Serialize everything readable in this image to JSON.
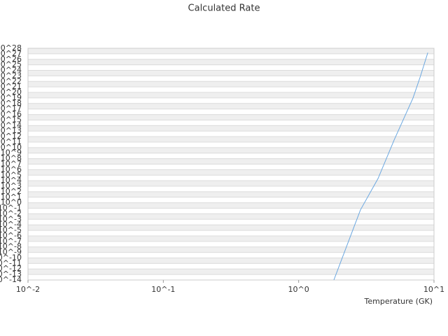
{
  "chart_data": {
    "type": "line",
    "title": "Calculated Rate",
    "x_label": "Temperature (GK)",
    "xscale": "log",
    "yscale": "log",
    "grid": true,
    "xlim": [
      0.01,
      10
    ],
    "xticks": [
      {
        "value": 0.01,
        "label": "10^-2"
      },
      {
        "value": 0.1,
        "label": "10^-1"
      },
      {
        "value": 1,
        "label": "10^0"
      },
      {
        "value": 10,
        "label": "10^1"
      }
    ],
    "ylim": [
      1e-14,
      1e+28
    ],
    "yticks": [
      {
        "value": 1e-14,
        "label": "10^-14"
      },
      {
        "value": 1e-13,
        "label": "10^-13"
      },
      {
        "value": 1e-12,
        "label": "10^-12"
      },
      {
        "value": 1e-11,
        "label": "10^-11"
      },
      {
        "value": 1e-10,
        "label": "10^-10"
      },
      {
        "value": 1e-09,
        "label": "10^-9"
      },
      {
        "value": 1e-08,
        "label": "10^-8"
      },
      {
        "value": 1e-07,
        "label": "10^-7"
      },
      {
        "value": 1e-06,
        "label": "10^-6"
      },
      {
        "value": 1e-05,
        "label": "10^-5"
      },
      {
        "value": 0.0001,
        "label": "10^-4"
      },
      {
        "value": 0.001,
        "label": "10^-3"
      },
      {
        "value": 0.01,
        "label": "10^-2"
      },
      {
        "value": 0.1,
        "label": "10^-1"
      },
      {
        "value": 1,
        "label": "10^0"
      },
      {
        "value": 10.0,
        "label": "10^1"
      },
      {
        "value": 100.0,
        "label": "10^2"
      },
      {
        "value": 1000.0,
        "label": "10^3"
      },
      {
        "value": 10000.0,
        "label": "10^4"
      },
      {
        "value": 100000.0,
        "label": "10^5"
      },
      {
        "value": 1000000.0,
        "label": "10^6"
      },
      {
        "value": 10000000.0,
        "label": "10^7"
      },
      {
        "value": 100000000.0,
        "label": "10^8"
      },
      {
        "value": 1000000000.0,
        "label": "10^9"
      },
      {
        "value": 10000000000.0,
        "label": "10^10"
      },
      {
        "value": 100000000000.0,
        "label": "10^11"
      },
      {
        "value": 1000000000000.0,
        "label": "10^12"
      },
      {
        "value": 10000000000000.0,
        "label": "10^13"
      },
      {
        "value": 100000000000000.0,
        "label": "10^14"
      },
      {
        "value": 1000000000000000.0,
        "label": "10^15"
      },
      {
        "value": 1e+16,
        "label": "10^16"
      },
      {
        "value": 1e+17,
        "label": "10^17"
      },
      {
        "value": 1e+18,
        "label": "10^18"
      },
      {
        "value": 1e+19,
        "label": "10^19"
      },
      {
        "value": 1e+20,
        "label": "10^20"
      },
      {
        "value": 1e+21,
        "label": "10^21"
      },
      {
        "value": 1e+22,
        "label": "10^22"
      },
      {
        "value": 1e+23,
        "label": "10^23"
      },
      {
        "value": 1e+24,
        "label": "10^24"
      },
      {
        "value": 1e+25,
        "label": "10^25"
      },
      {
        "value": 1e+26,
        "label": "10^26"
      },
      {
        "value": 1e+27,
        "label": "10^27"
      },
      {
        "value": 1e+28,
        "label": "10^28"
      }
    ],
    "x": [
      1.82,
      2.86,
      3.86,
      5.08,
      7.0,
      7.9,
      9.0
    ],
    "series": [
      {
        "color": "#6aa7e0",
        "values": [
          1e-14,
          0.05,
          25000,
          250000000000.0,
          1e+19,
          6e+22,
          1.6e+27
        ]
      }
    ]
  }
}
